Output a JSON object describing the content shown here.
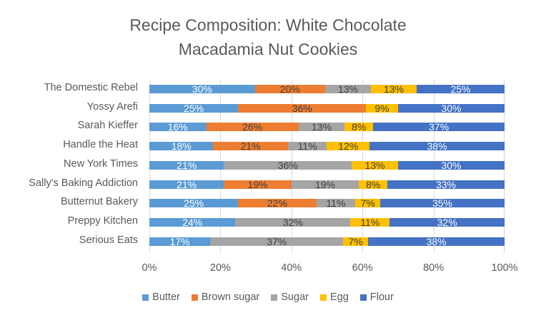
{
  "chart_data": {
    "type": "bar",
    "orientation": "horizontal",
    "stacked": "percent",
    "title": "Recipe Composition: White Chocolate Macadamia Nut Cookies",
    "title_lines": [
      "Recipe Composition: White Chocolate",
      "Macadamia Nut Cookies"
    ],
    "xlabel": "",
    "ylabel": "",
    "xlim": [
      0,
      100
    ],
    "x_ticks": [
      "0%",
      "20%",
      "40%",
      "60%",
      "80%",
      "100%"
    ],
    "grid": true,
    "legend_position": "bottom",
    "categories": [
      "The Domestic Rebel",
      "Yossy Arefi",
      "Sarah Kieffer",
      "Handle the Heat",
      "New York Times",
      "Sally's Baking Addiction",
      "Butternut Bakery",
      "Preppy Kitchen",
      "Serious Eats"
    ],
    "series": [
      {
        "name": "Butter",
        "color": "#5b9bd5",
        "label_color": "#ffffff",
        "values": [
          30,
          25,
          16,
          18,
          21,
          21,
          25,
          24,
          17
        ]
      },
      {
        "name": "Brown sugar",
        "color": "#ed7d31",
        "label_color": "#404040",
        "values": [
          20,
          36,
          26,
          21,
          0,
          19,
          22,
          0,
          0
        ]
      },
      {
        "name": "Sugar",
        "color": "#a5a5a5",
        "label_color": "#404040",
        "values": [
          13,
          0,
          13,
          11,
          36,
          19,
          11,
          32,
          37
        ]
      },
      {
        "name": "Egg",
        "color": "#ffc000",
        "label_color": "#404040",
        "values": [
          13,
          9,
          8,
          12,
          13,
          8,
          7,
          11,
          7
        ]
      },
      {
        "name": "Flour",
        "color": "#4472c4",
        "label_color": "#ffffff",
        "values": [
          25,
          30,
          37,
          38,
          30,
          33,
          35,
          32,
          38
        ]
      }
    ]
  }
}
